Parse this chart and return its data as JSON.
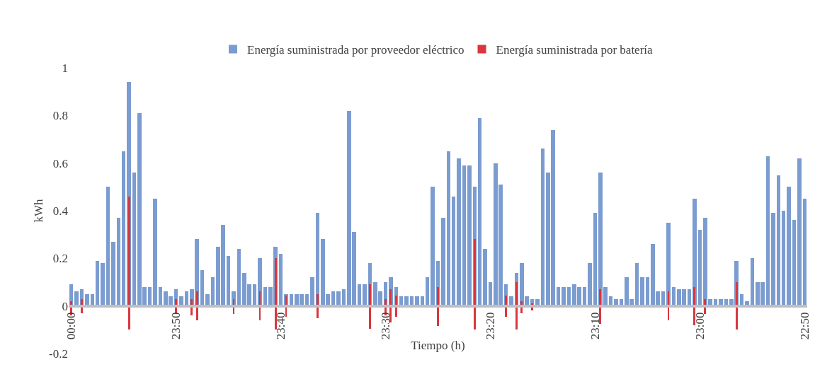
{
  "chart_data": {
    "type": "bar",
    "xlabel": "Tiempo (h)",
    "ylabel": "kWh",
    "categories": [
      "00:00",
      null,
      null,
      null,
      null,
      null,
      null,
      null,
      null,
      null,
      null,
      null,
      null,
      null,
      null,
      null,
      null,
      null,
      null,
      null,
      "23:50",
      null,
      null,
      null,
      null,
      null,
      null,
      null,
      null,
      null,
      null,
      null,
      null,
      null,
      null,
      null,
      null,
      null,
      null,
      null,
      "23:40",
      null,
      null,
      null,
      null,
      null,
      null,
      null,
      null,
      null,
      null,
      null,
      null,
      null,
      null,
      null,
      null,
      null,
      null,
      null,
      "23:30",
      null,
      null,
      null,
      null,
      null,
      null,
      null,
      null,
      null,
      null,
      null,
      null,
      null,
      null,
      null,
      null,
      null,
      null,
      null,
      "23:20",
      null,
      null,
      null,
      null,
      null,
      null,
      null,
      null,
      null,
      null,
      null,
      null,
      null,
      null,
      null,
      null,
      null,
      null,
      null,
      "23:10",
      null,
      null,
      null,
      null,
      null,
      null,
      null,
      null,
      null,
      null,
      null,
      null,
      null,
      null,
      null,
      null,
      null,
      null,
      null,
      "23:00",
      null,
      null,
      null,
      null,
      null,
      null,
      null,
      null,
      null,
      null,
      null,
      null,
      null,
      null,
      null,
      null,
      null,
      null,
      null,
      "22:50"
    ],
    "series": [
      {
        "name": "Energía suministrada por proveedor eléctrico",
        "color": "#7b9cd0",
        "values": [
          0.09,
          0.06,
          0.07,
          0.05,
          0.05,
          0.19,
          0.18,
          0.5,
          0.27,
          0.37,
          0.65,
          0.94,
          0.56,
          0.81,
          0.08,
          0.08,
          0.45,
          0.08,
          0.06,
          0.04,
          0.07,
          0.04,
          0.06,
          0.07,
          0.28,
          0.15,
          0.05,
          0.12,
          0.25,
          0.34,
          0.21,
          0.06,
          0.24,
          0.14,
          0.09,
          0.09,
          0.2,
          0.08,
          0.08,
          0.25,
          0.22,
          0.05,
          0.05,
          0.05,
          0.05,
          0.05,
          0.12,
          0.39,
          0.28,
          0.05,
          0.06,
          0.06,
          0.07,
          0.82,
          0.31,
          0.09,
          0.09,
          0.18,
          0.1,
          0.06,
          0.1,
          0.12,
          0.08,
          0.04,
          0.04,
          0.04,
          0.04,
          0.04,
          0.12,
          0.5,
          0.19,
          0.37,
          0.65,
          0.46,
          0.62,
          0.59,
          0.59,
          0.5,
          0.79,
          0.24,
          0.1,
          0.6,
          0.51,
          0.09,
          0.04,
          0.14,
          0.18,
          0.04,
          0.03,
          0.03,
          0.66,
          0.56,
          0.74,
          0.08,
          0.08,
          0.08,
          0.09,
          0.08,
          0.08,
          0.18,
          0.39,
          0.56,
          0.08,
          0.04,
          0.03,
          0.03,
          0.12,
          0.03,
          0.18,
          0.12,
          0.12,
          0.26,
          0.06,
          0.06,
          0.35,
          0.08,
          0.07,
          0.07,
          0.07,
          0.45,
          0.32,
          0.37,
          0.03,
          0.03,
          0.03,
          0.03,
          0.03,
          0.19,
          0.05,
          0.02,
          0.2,
          0.1,
          0.1,
          0.63,
          0.39,
          0.55,
          0.4,
          0.5,
          0.36,
          0.62,
          0.45
        ]
      },
      {
        "name": "Energía suministrada por batería",
        "color": "#d9363e",
        "values": [
          0.06,
          null,
          0.06,
          null,
          null,
          null,
          null,
          null,
          null,
          null,
          null,
          0.56,
          null,
          null,
          null,
          null,
          null,
          null,
          null,
          null,
          0.065,
          null,
          null,
          0.07,
          0.12,
          null,
          null,
          null,
          null,
          null,
          null,
          0.065,
          null,
          null,
          null,
          null,
          0.12,
          null,
          null,
          0.3,
          null,
          0.09,
          null,
          null,
          null,
          null,
          null,
          0.1,
          null,
          null,
          null,
          null,
          null,
          null,
          null,
          null,
          null,
          0.185,
          null,
          null,
          0.07,
          0.14,
          0.09,
          null,
          null,
          null,
          null,
          null,
          null,
          null,
          0.165,
          null,
          null,
          null,
          null,
          null,
          null,
          0.38,
          null,
          null,
          null,
          null,
          null,
          0.09,
          null,
          0.2,
          0.05,
          null,
          0.03,
          null,
          null,
          null,
          null,
          null,
          null,
          null,
          null,
          null,
          null,
          null,
          null,
          0.145,
          null,
          null,
          null,
          null,
          null,
          null,
          null,
          null,
          null,
          null,
          null,
          null,
          0.12,
          null,
          null,
          null,
          null,
          0.16,
          null,
          0.065,
          null,
          null,
          null,
          null,
          null,
          0.2,
          null,
          null,
          null,
          null,
          null,
          null,
          null,
          null,
          null,
          null,
          null,
          null,
          null
        ],
        "base": [
          -0.04,
          null,
          -0.03,
          null,
          null,
          null,
          null,
          null,
          null,
          null,
          null,
          -0.1,
          null,
          null,
          null,
          null,
          null,
          null,
          null,
          null,
          -0.035,
          null,
          null,
          -0.04,
          -0.06,
          null,
          null,
          null,
          null,
          null,
          null,
          -0.035,
          null,
          null,
          null,
          null,
          -0.06,
          null,
          null,
          -0.1,
          null,
          -0.045,
          null,
          null,
          null,
          null,
          null,
          -0.05,
          null,
          null,
          null,
          null,
          null,
          null,
          null,
          null,
          null,
          -0.095,
          null,
          null,
          -0.04,
          -0.07,
          -0.045,
          null,
          null,
          null,
          null,
          null,
          null,
          null,
          -0.085,
          null,
          null,
          null,
          null,
          null,
          null,
          -0.1,
          null,
          null,
          null,
          null,
          null,
          -0.045,
          null,
          -0.1,
          -0.03,
          null,
          -0.02,
          null,
          null,
          null,
          null,
          null,
          null,
          null,
          null,
          null,
          null,
          null,
          null,
          -0.075,
          null,
          null,
          null,
          null,
          null,
          null,
          null,
          null,
          null,
          null,
          null,
          null,
          -0.06,
          null,
          null,
          null,
          null,
          -0.08,
          null,
          -0.035,
          null,
          null,
          null,
          null,
          null,
          -0.1,
          null,
          null,
          null,
          null,
          null,
          null,
          null,
          null,
          null,
          null,
          null,
          null,
          null
        ]
      }
    ],
    "ylim": [
      -0.2,
      1
    ],
    "yticks": [
      -0.2,
      0,
      0.2,
      0.4,
      0.6,
      0.8,
      1
    ],
    "grid": false,
    "legend": "top"
  }
}
